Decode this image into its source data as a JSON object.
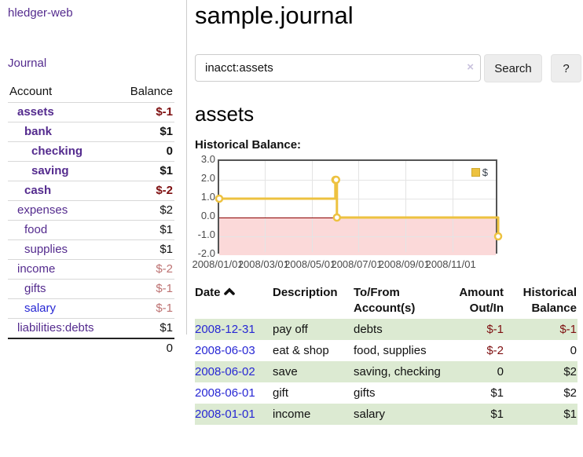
{
  "app": {
    "name": "hledger-web",
    "nav_journal": "Journal"
  },
  "sidebar": {
    "col_account": "Account",
    "col_balance": "Balance",
    "accounts": [
      {
        "name": "assets",
        "balance": "$-1",
        "depth": 1,
        "bold": true,
        "link_color": "purple",
        "bal_class": "neg-strong"
      },
      {
        "name": "bank",
        "balance": "$1",
        "depth": 2,
        "bold": true,
        "link_color": "purple",
        "bal_class": "pos"
      },
      {
        "name": "checking",
        "balance": "0",
        "depth": 3,
        "bold": true,
        "link_color": "purple",
        "bal_class": "pos"
      },
      {
        "name": "saving",
        "balance": "$1",
        "depth": 3,
        "bold": true,
        "link_color": "purple",
        "bal_class": "pos"
      },
      {
        "name": "cash",
        "balance": "$-2",
        "depth": 2,
        "bold": true,
        "link_color": "purple",
        "bal_class": "neg-strong"
      },
      {
        "name": "expenses",
        "balance": "$2",
        "depth": 1,
        "bold": false,
        "link_color": "purple",
        "bal_class": "pos"
      },
      {
        "name": "food",
        "balance": "$1",
        "depth": 2,
        "bold": false,
        "link_color": "purple",
        "bal_class": "pos"
      },
      {
        "name": "supplies",
        "balance": "$1",
        "depth": 2,
        "bold": false,
        "link_color": "purple",
        "bal_class": "pos"
      },
      {
        "name": "income",
        "balance": "$-2",
        "depth": 1,
        "bold": false,
        "link_color": "purple",
        "bal_class": "neg-soft"
      },
      {
        "name": "gifts",
        "balance": "$-1",
        "depth": 2,
        "bold": false,
        "link_color": "purple",
        "bal_class": "neg-soft"
      },
      {
        "name": "salary",
        "balance": "$-1",
        "depth": 2,
        "bold": false,
        "link_color": "blue",
        "bal_class": "neg-soft"
      },
      {
        "name": "liabilities:debts",
        "balance": "$1",
        "depth": 1,
        "bold": false,
        "link_color": "purple",
        "bal_class": "pos"
      }
    ],
    "total": "0"
  },
  "main": {
    "title": "sample.journal",
    "search": {
      "value": "inacct:assets",
      "clear_icon": "×",
      "search_label": "Search",
      "help_label": "?"
    },
    "account_heading": "assets",
    "chart_label": "Historical Balance:"
  },
  "chart_data": {
    "type": "line",
    "step": true,
    "title": "Historical Balance:",
    "series": [
      {
        "name": "$",
        "color": "#edc240",
        "points": [
          [
            "2008-01-01",
            1
          ],
          [
            "2008-06-01",
            2
          ],
          [
            "2008-06-02",
            2
          ],
          [
            "2008-06-03",
            0
          ],
          [
            "2008-12-31",
            -1
          ]
        ]
      }
    ],
    "x_ticks": [
      "2008/01/01",
      "2008/03/01",
      "2008/05/01",
      "2008/07/01",
      "2008/09/01",
      "2008/11/01"
    ],
    "y_ticks": [
      "3.0",
      "2.0",
      "1.0",
      "0.0",
      "-1.0",
      "-2.0"
    ],
    "ylim": [
      -2,
      3
    ],
    "xlim": [
      "2008-01-01",
      "2009-01-01"
    ],
    "grid": true,
    "negative_region_color": "#fbd9d9",
    "zero_line_color": "#8b0000",
    "legend": {
      "label": "$",
      "position": "top-right"
    }
  },
  "register_table": {
    "headers": [
      {
        "l1": "Date",
        "l2": "",
        "align": "left",
        "sortable": true
      },
      {
        "l1": "Description",
        "l2": "",
        "align": "left",
        "sortable": false
      },
      {
        "l1": "To/From",
        "l2": "Account(s)",
        "align": "left",
        "sortable": false
      },
      {
        "l1": "Amount",
        "l2": "Out/In",
        "align": "right",
        "sortable": false
      },
      {
        "l1": "Historical",
        "l2": "Balance",
        "align": "right",
        "sortable": false
      }
    ],
    "rows": [
      {
        "date": "2008-12-31",
        "description": "pay off",
        "accounts": "debts",
        "amount": "$-1",
        "amount_neg": true,
        "balance": "$-1",
        "balance_neg": true,
        "stripe": true
      },
      {
        "date": "2008-06-03",
        "description": "eat & shop",
        "accounts": "food, supplies",
        "amount": "$-2",
        "amount_neg": true,
        "balance": "0",
        "balance_neg": false,
        "stripe": false
      },
      {
        "date": "2008-06-02",
        "description": "save",
        "accounts": "saving, checking",
        "amount": "0",
        "amount_neg": false,
        "balance": "$2",
        "balance_neg": false,
        "stripe": true
      },
      {
        "date": "2008-06-01",
        "description": "gift",
        "accounts": "gifts",
        "amount": "$1",
        "amount_neg": false,
        "balance": "$2",
        "balance_neg": false,
        "stripe": false
      },
      {
        "date": "2008-01-01",
        "description": "income",
        "accounts": "salary",
        "amount": "$1",
        "amount_neg": false,
        "balance": "$1",
        "balance_neg": false,
        "stripe": true
      }
    ]
  }
}
